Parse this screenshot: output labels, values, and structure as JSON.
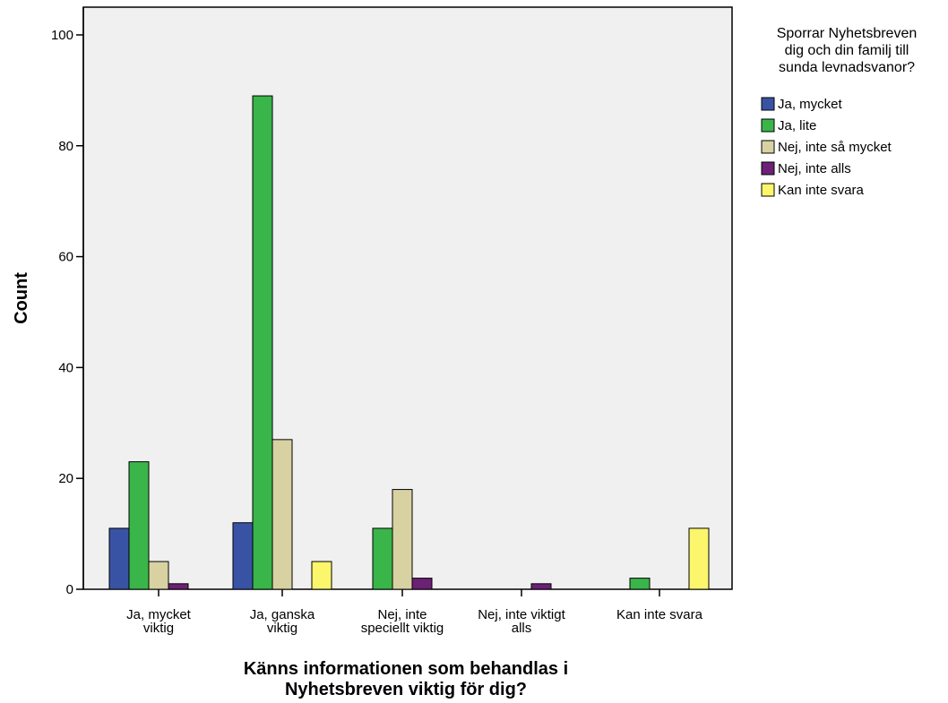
{
  "chart_data": {
    "type": "bar",
    "title": "",
    "xlabel": [
      "Känns informationen som behandlas i",
      "Nyhetsbreven viktig för dig?"
    ],
    "ylabel": "Count",
    "ylim": [
      0,
      105
    ],
    "yticks": [
      0,
      20,
      40,
      60,
      80,
      100
    ],
    "grid": false,
    "legend_position": "right",
    "legend_title": [
      "Sporrar Nyhetsbreven",
      "dig och din familj till",
      "sunda levnadsvanor?"
    ],
    "categories": [
      [
        "Ja, mycket",
        "viktig"
      ],
      [
        "Ja, ganska",
        "viktig"
      ],
      [
        "Nej, inte",
        "speciellt viktig"
      ],
      [
        "Nej, inte viktigt",
        "alls"
      ],
      [
        "Kan inte svara"
      ]
    ],
    "series": [
      {
        "name": "Ja, mycket",
        "color": "#3953a4",
        "values": [
          11,
          12,
          null,
          null,
          null
        ]
      },
      {
        "name": "Ja, lite",
        "color": "#3ab54a",
        "values": [
          23,
          89,
          11,
          null,
          2
        ]
      },
      {
        "name": "Nej, inte så mycket",
        "color": "#d8d2a2",
        "values": [
          5,
          27,
          18,
          null,
          null
        ]
      },
      {
        "name": "Nej, inte alls",
        "color": "#6b2175",
        "values": [
          1,
          null,
          2,
          1,
          null
        ]
      },
      {
        "name": "Kan inte svara",
        "color": "#fbf66b",
        "values": [
          null,
          5,
          null,
          null,
          11
        ]
      }
    ]
  },
  "colors": {
    "plot_background": "#f0f0f0",
    "axis": "#000000"
  }
}
